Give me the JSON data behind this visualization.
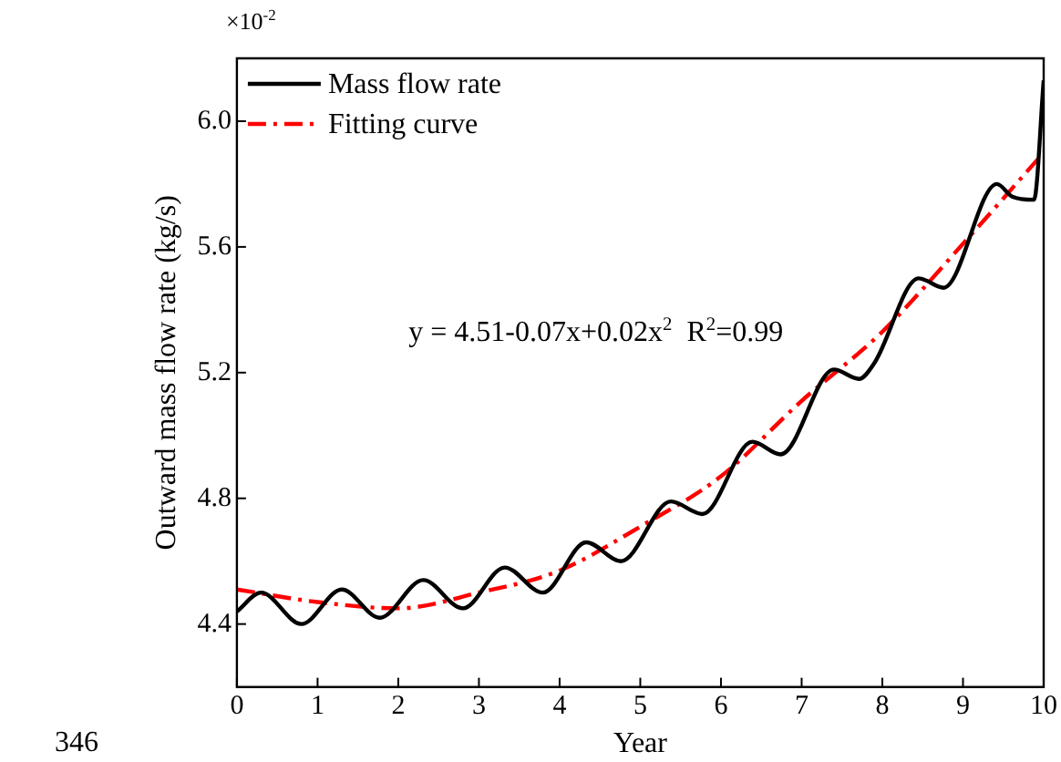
{
  "chart_data": {
    "type": "line",
    "xlabel": "Year",
    "ylabel": "Outward mass flow rate (kg/s)",
    "xlim": [
      0,
      10
    ],
    "xticks": [
      0,
      1,
      2,
      3,
      4,
      5,
      6,
      7,
      8,
      9,
      10
    ],
    "ylim": [
      4.2,
      6.2
    ],
    "yticks": [
      4.4,
      4.8,
      5.2,
      5.6,
      {
        "value": 6,
        "label": "6.0"
      }
    ],
    "grid": false,
    "legend": "top left",
    "marker": "none",
    "annotations": [
      "y = 4.51-0.07x+0.02x$^{2}$  R$^{2}$=0.99",
      "×10$^{-2}$",
      "346"
    ],
    "series": [
      {
        "name": "Mass flow rate",
        "color": "#000000",
        "line_style": "solid",
        "x": [
          0,
          0.3,
          0.8,
          1.3,
          1.77,
          2.31,
          2.8,
          3.32,
          3.79,
          4.33,
          4.76,
          5.38,
          5.77,
          6.39,
          6.74,
          7.4,
          7.71,
          7.9,
          8.45,
          8.76,
          9.42,
          9.61,
          9.88,
          10
        ],
        "values": [
          4.44,
          4.5,
          4.4,
          4.51,
          4.42,
          4.54,
          4.45,
          4.58,
          4.5,
          4.66,
          4.6,
          4.79,
          4.75,
          4.98,
          4.94,
          5.21,
          5.18,
          5.23,
          5.5,
          5.47,
          5.8,
          5.76,
          5.75,
          6.13
        ]
      },
      {
        "name": "Fitting curve",
        "color": "#ff0000",
        "line_style": "dashdot",
        "x": [
          0,
          1,
          2,
          3,
          4,
          5,
          6,
          7,
          8,
          9,
          10
        ],
        "values": [
          4.51,
          4.47,
          4.45,
          4.5,
          4.57,
          4.71,
          4.87,
          5.11,
          5.33,
          5.61,
          5.9
        ]
      }
    ]
  }
}
